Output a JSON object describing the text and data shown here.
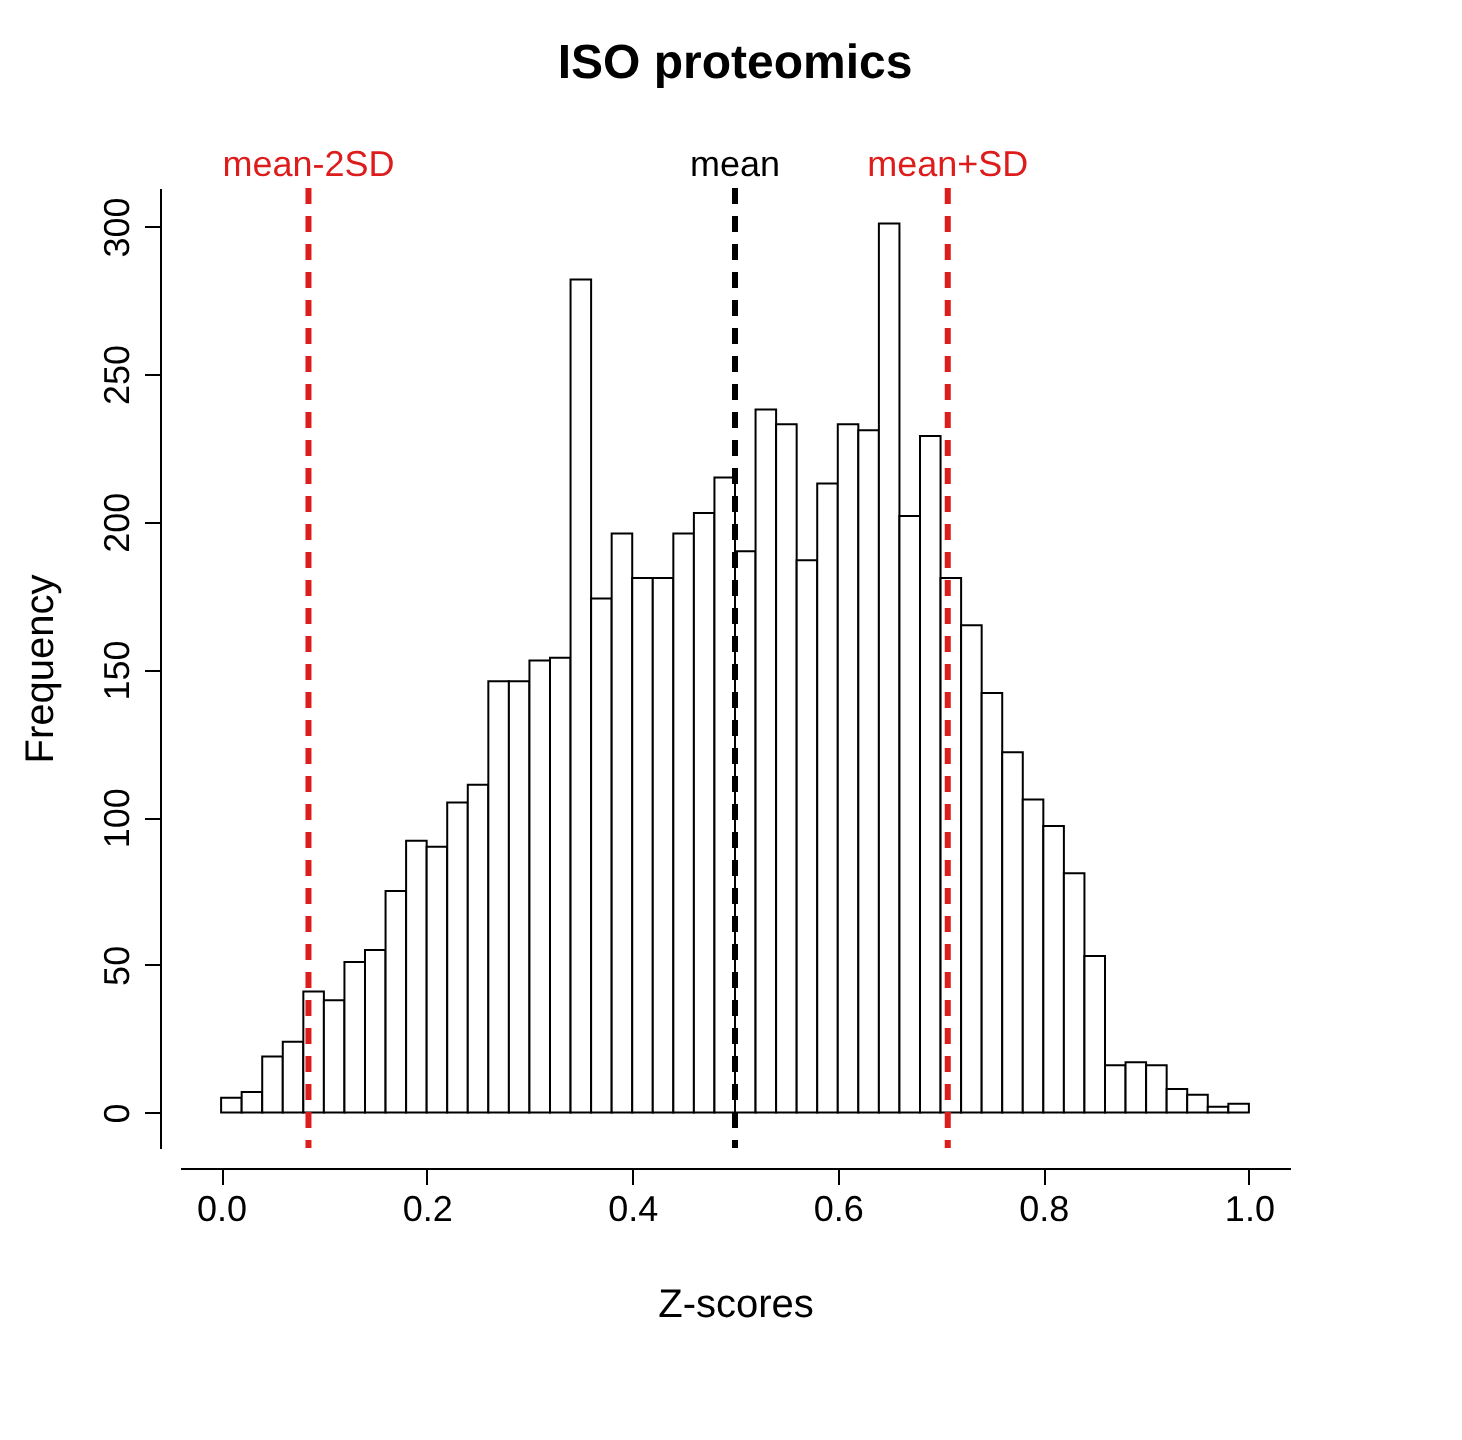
{
  "chart_data": {
    "type": "histogram",
    "title": "ISO proteomics",
    "xlabel": "Z-scores",
    "ylabel": "Frequency",
    "bins": [
      0,
      0.02,
      0.04,
      0.06,
      0.08,
      0.1,
      0.12,
      0.14,
      0.16,
      0.18,
      0.2,
      0.22,
      0.24,
      0.26,
      0.28,
      0.3,
      0.32,
      0.34,
      0.36,
      0.38,
      0.4,
      0.42,
      0.44,
      0.46,
      0.48,
      0.5,
      0.52,
      0.54,
      0.56,
      0.58,
      0.6,
      0.62,
      0.64,
      0.66,
      0.68,
      0.7,
      0.72,
      0.74,
      0.76,
      0.78,
      0.8,
      0.82,
      0.84,
      0.86,
      0.88,
      0.9,
      0.92,
      0.94,
      0.96,
      0.98,
      1
    ],
    "values": [
      5,
      7,
      19,
      24,
      41,
      38,
      51,
      55,
      75,
      92,
      90,
      105,
      111,
      146,
      146,
      153,
      154,
      282,
      174,
      196,
      181,
      181,
      196,
      203,
      215,
      190,
      238,
      233,
      187,
      213,
      233,
      231,
      301,
      202,
      229,
      181,
      165,
      142,
      122,
      106,
      97,
      81,
      53,
      16,
      17,
      16,
      8,
      6,
      2,
      3
    ],
    "color": "#ffffff",
    "xlim": [
      -0.04,
      1.04
    ],
    "xticks": [
      {
        "value": 0,
        "label": "0.0"
      },
      0.2,
      0.4,
      0.6,
      0.8,
      {
        "value": 1,
        "label": "1.0"
      }
    ],
    "ylim": [
      -12,
      313
    ],
    "yticks": [
      0,
      50,
      100,
      150,
      200,
      250,
      300
    ],
    "grid": false,
    "ref_lines": [
      {
        "axis": "x",
        "value": 0.085,
        "label": "mean-2SD",
        "color": "#dd1c1c",
        "line_style": "dashed"
      },
      {
        "axis": "x",
        "value": 0.5,
        "label": "mean",
        "color": "#000000",
        "line_style": "dashed"
      },
      {
        "axis": "x",
        "value": 0.707,
        "label": "mean+SD",
        "color": "#dd1c1c",
        "line_style": "dashed"
      }
    ]
  }
}
